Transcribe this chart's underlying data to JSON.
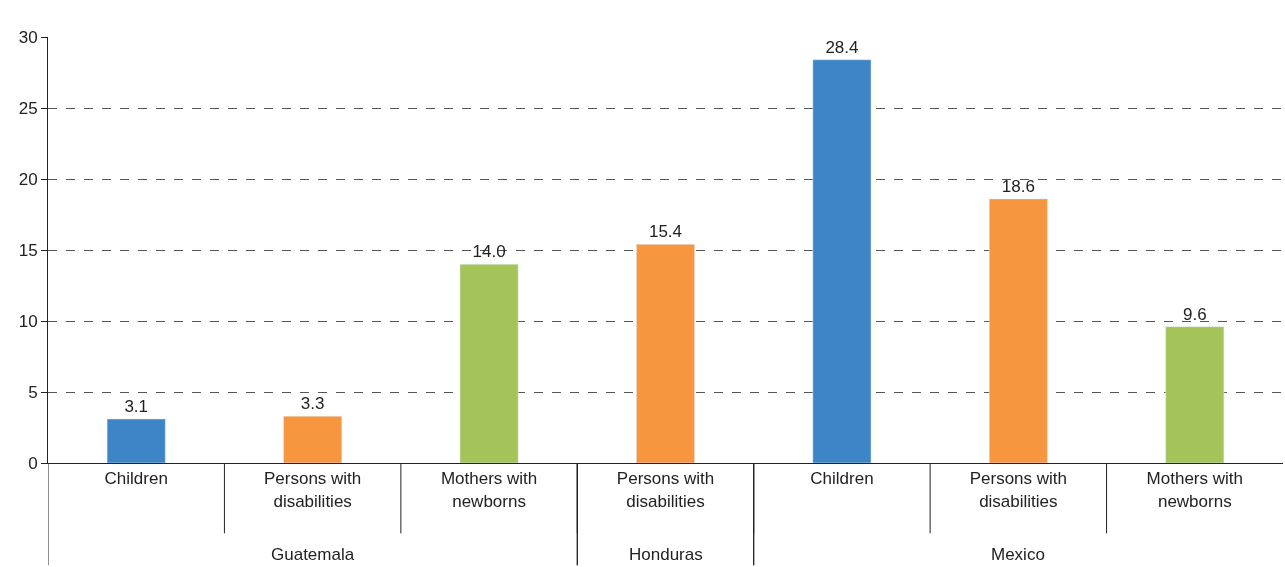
{
  "chart_data": {
    "type": "bar",
    "categories": [
      "Children",
      "Persons with disabilities",
      "Mothers with newborns",
      "Persons with disabilities",
      "Children",
      "Persons with disabilities",
      "Mothers with newborns"
    ],
    "series": [
      {
        "values": [
          3.1,
          3.3,
          14.0,
          null,
          null,
          null,
          null
        ],
        "value_labels": [
          "3.1",
          "3.3",
          "14.0",
          null,
          null,
          null,
          null
        ],
        "colors": [
          "#3d85c6",
          "#f6963f",
          "#a4c45a",
          null,
          null,
          null,
          null
        ]
      },
      {
        "values": [
          null,
          null,
          null,
          15.4,
          null,
          null,
          null
        ],
        "value_labels": [
          null,
          null,
          null,
          "15.4",
          null,
          null,
          null
        ],
        "colors": [
          null,
          null,
          null,
          "#f6963f",
          null,
          null,
          null
        ]
      },
      {
        "values": [
          null,
          null,
          null,
          null,
          28.4,
          18.6,
          9.6
        ],
        "value_labels": [
          null,
          null,
          null,
          null,
          "28.4",
          "18.6",
          "9.6"
        ],
        "colors": [
          null,
          null,
          null,
          null,
          "#3d85c6",
          "#f6963f",
          "#a4c45a"
        ]
      }
    ],
    "annotations": [
      "Guatemala",
      "Honduras",
      "Mexico"
    ],
    "ylim": [
      0,
      30
    ],
    "yticks": [
      0,
      5,
      10,
      15,
      20,
      25,
      30
    ],
    "grid": "y",
    "line_style": "dashed"
  }
}
